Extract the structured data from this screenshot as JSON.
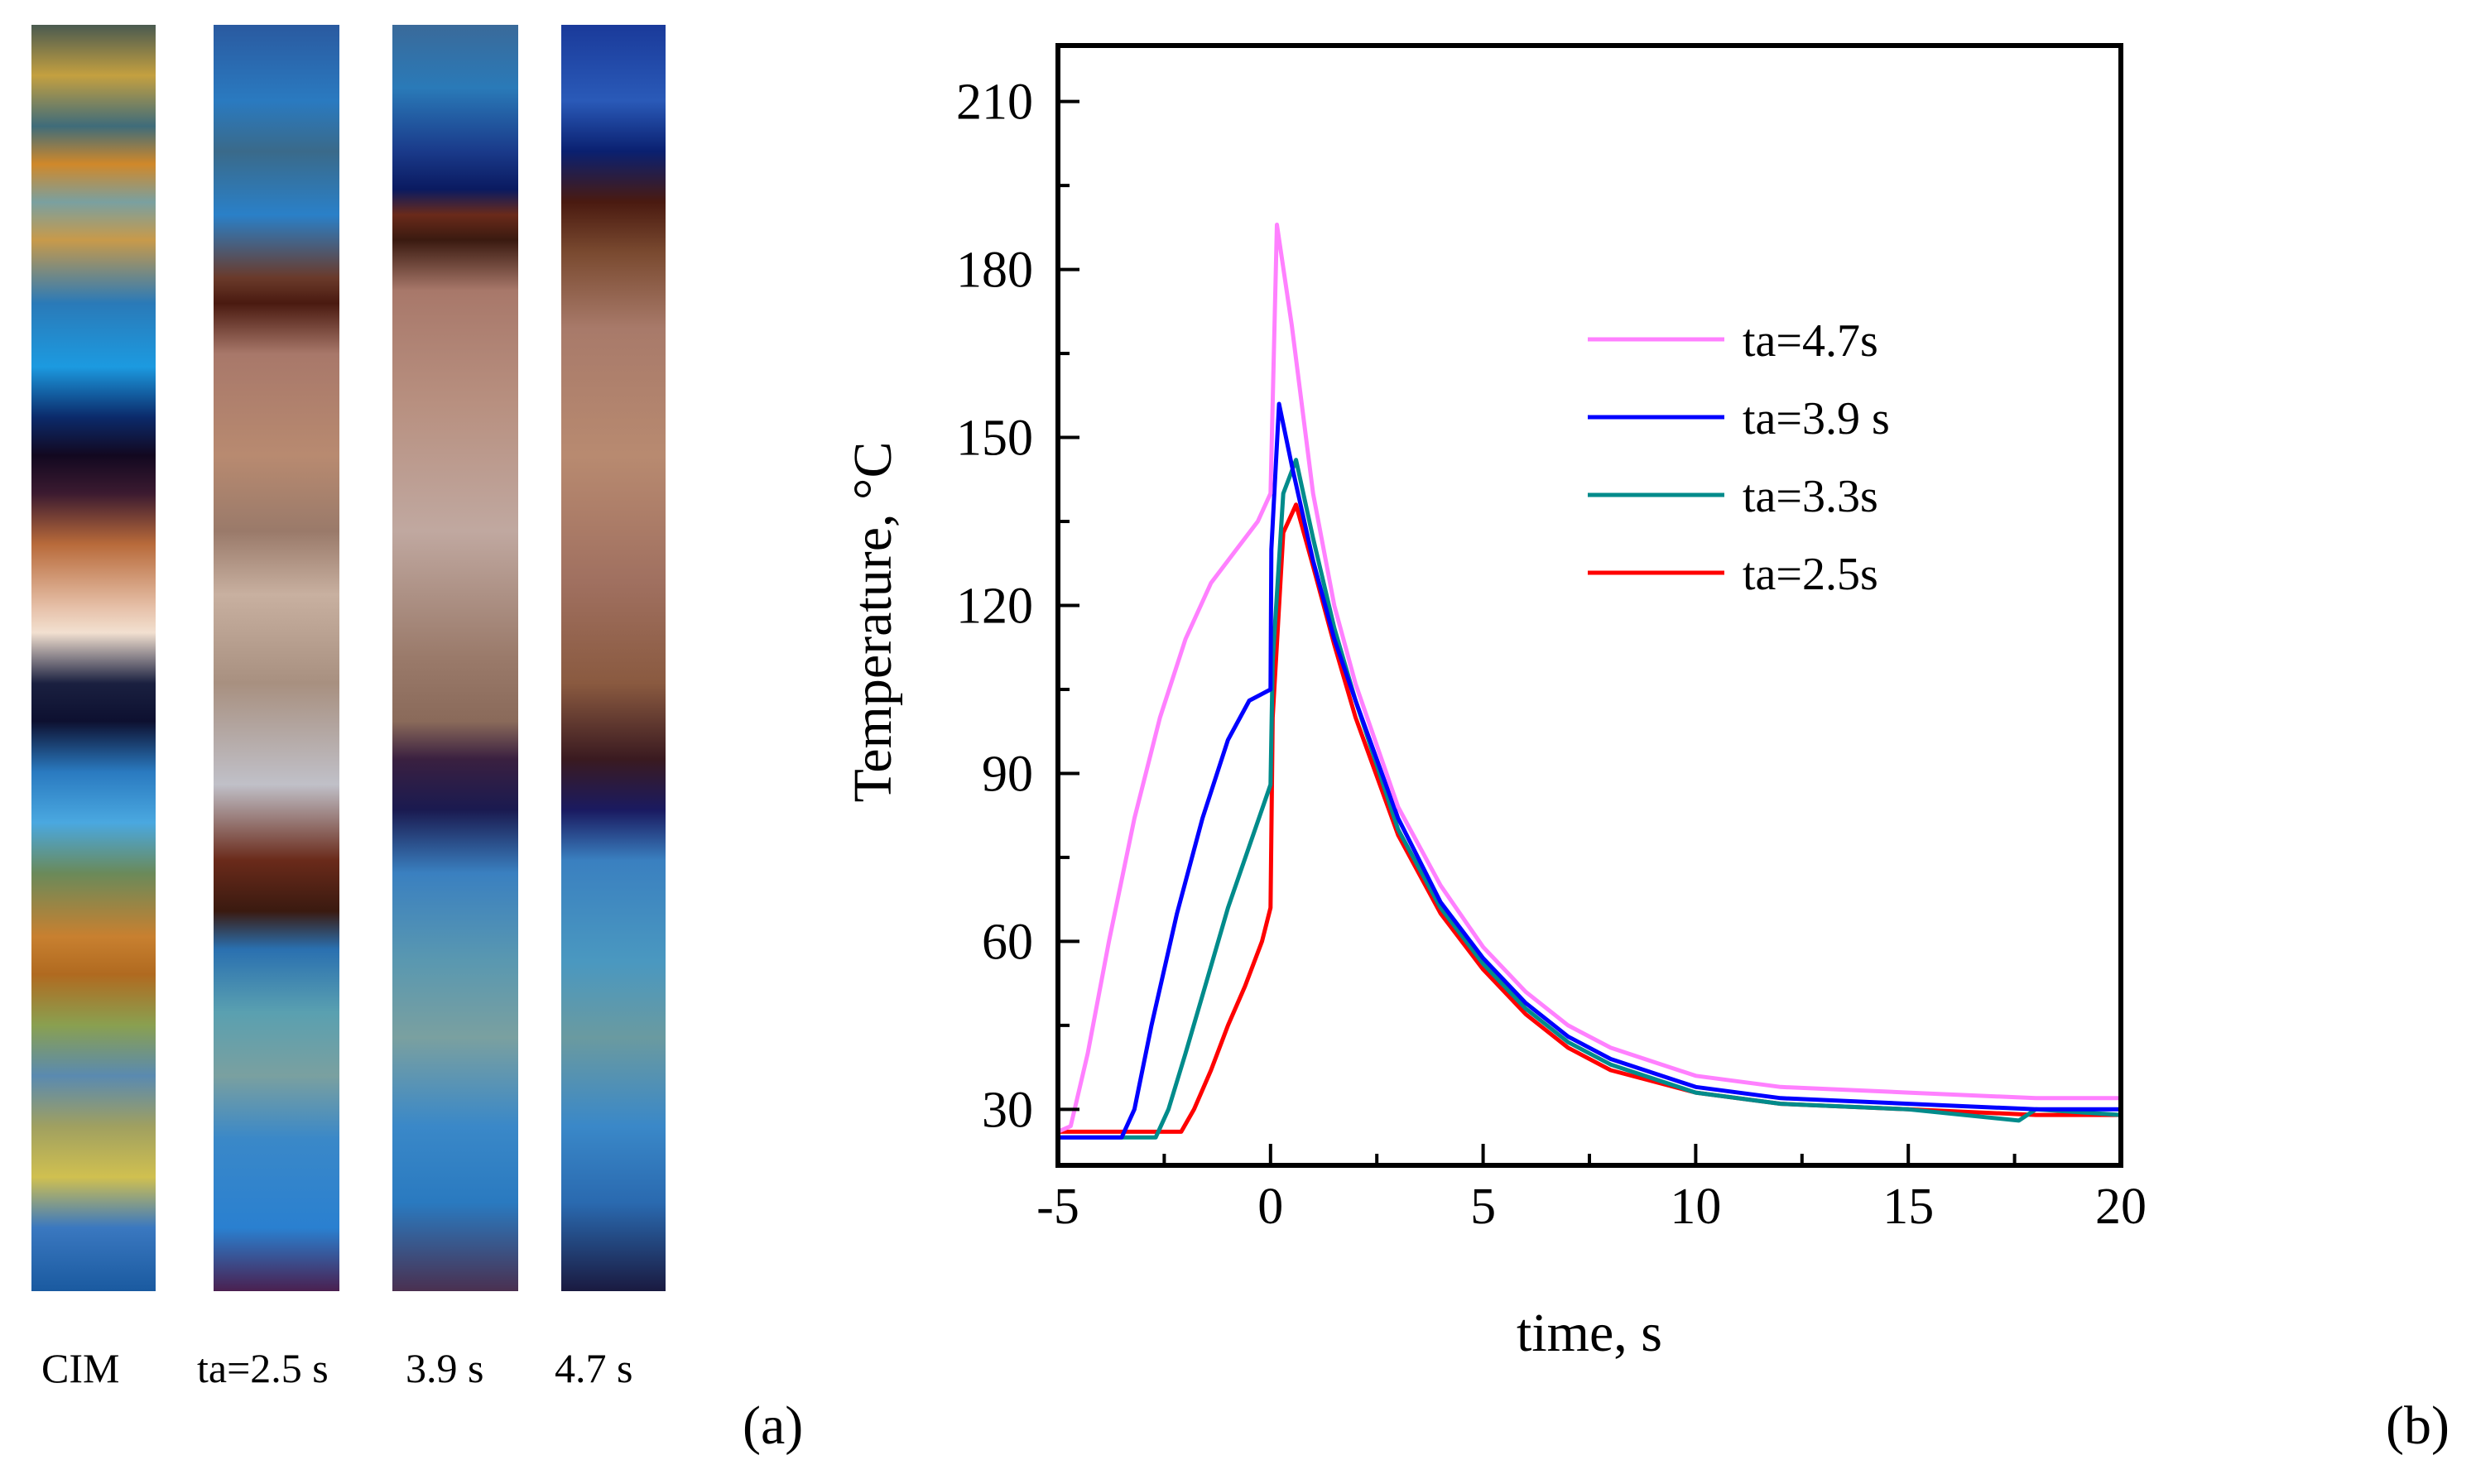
{
  "panel_a": {
    "strip_labels": [
      "CIM",
      "ta=2.5 s",
      "3.9 s",
      "4.7 s"
    ],
    "tag": "(a)"
  },
  "panel_b": {
    "tag": "(b)"
  },
  "chart_data": {
    "type": "line",
    "title": "",
    "xlabel": "time, s",
    "ylabel": "Temperature, °C",
    "xlim": [
      -5,
      20
    ],
    "ylim": [
      20,
      220
    ],
    "xticks": [
      -5,
      0,
      5,
      10,
      15,
      20
    ],
    "yticks": [
      30,
      60,
      90,
      120,
      150,
      180,
      210
    ],
    "grid": false,
    "legend_position": "top-right",
    "series": [
      {
        "name": "ta=4.7s",
        "color": "#ff80ff",
        "x": [
          -5,
          -4.7,
          -4.3,
          -3.8,
          -3.2,
          -2.6,
          -2.0,
          -1.4,
          -0.8,
          -0.3,
          0.0,
          0.15,
          0.5,
          1.0,
          1.5,
          2.0,
          3.0,
          4.0,
          5.0,
          6.0,
          7.0,
          8.0,
          10.0,
          12.0,
          15.0,
          18.0,
          20.0
        ],
        "y": [
          26,
          27,
          40,
          60,
          82,
          100,
          114,
          124,
          130,
          135,
          140,
          188,
          170,
          140,
          120,
          106,
          84,
          70,
          59,
          51,
          45,
          41,
          36,
          34,
          33,
          32,
          32
        ]
      },
      {
        "name": "ta=3.9 s",
        "color": "#0000ff",
        "x": [
          -5,
          -3.5,
          -3.2,
          -2.8,
          -2.2,
          -1.6,
          -1.0,
          -0.5,
          0.0,
          0.02,
          0.2,
          0.5,
          1.0,
          1.5,
          2.0,
          3.0,
          4.0,
          5.0,
          6.0,
          7.0,
          8.0,
          10.0,
          12.0,
          15.0,
          18.0,
          20.0
        ],
        "y": [
          25,
          25,
          30,
          45,
          65,
          82,
          96,
          103,
          105,
          130,
          156,
          145,
          128,
          114,
          103,
          82,
          67,
          57,
          49,
          43,
          39,
          34,
          32,
          31,
          30,
          30
        ]
      },
      {
        "name": "ta=3.3s",
        "color": "#008b8b",
        "x": [
          -5,
          -2.7,
          -2.4,
          -2.0,
          -1.5,
          -1.0,
          -0.5,
          0.0,
          0.05,
          0.3,
          0.6,
          1.0,
          1.5,
          2.0,
          3.0,
          4.0,
          5.0,
          6.0,
          7.0,
          8.0,
          10.0,
          12.0,
          15.0,
          17.6,
          18.0,
          20.0
        ],
        "y": [
          25,
          25,
          30,
          40,
          53,
          66,
          77,
          88,
          110,
          140,
          146,
          132,
          116,
          103,
          80,
          66,
          56,
          48,
          42,
          38,
          33,
          31,
          30,
          28,
          30,
          29
        ]
      },
      {
        "name": "ta=2.5s",
        "color": "#ff0000",
        "x": [
          -5,
          -2.1,
          -1.8,
          -1.4,
          -1.0,
          -0.6,
          -0.2,
          0.0,
          0.05,
          0.3,
          0.6,
          1.0,
          1.5,
          2.0,
          3.0,
          4.0,
          5.0,
          6.0,
          7.0,
          8.0,
          10.0,
          12.0,
          15.0,
          18.0,
          20.0
        ],
        "y": [
          26,
          26,
          30,
          37,
          45,
          52,
          60,
          66,
          100,
          133,
          138,
          127,
          113,
          100,
          79,
          65,
          55,
          47,
          41,
          37,
          33,
          31,
          30,
          29,
          29
        ]
      }
    ]
  }
}
